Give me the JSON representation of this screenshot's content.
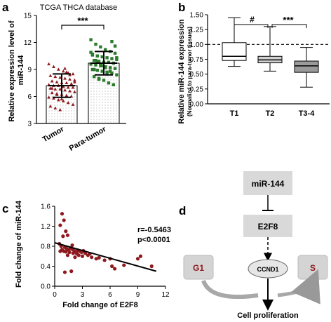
{
  "chart_data": [
    {
      "panel": "a",
      "type": "bar",
      "title": "TCGA THCA database",
      "ylabel": "Relative expression level of miR-144",
      "categories": [
        "Tumor",
        "Para-tumor"
      ],
      "values": [
        7.2,
        9.7
      ],
      "sd": [
        1.3,
        1.3
      ],
      "ylim": [
        3,
        15
      ],
      "yticks": [
        3,
        6,
        9,
        12,
        15
      ],
      "significance": "***",
      "points": {
        "Tumor": [
          9.6,
          9.3,
          9.0,
          8.8,
          8.6,
          8.5,
          8.3,
          8.2,
          8.1,
          8.0,
          7.9,
          7.8,
          7.7,
          7.6,
          7.5,
          7.5,
          7.4,
          7.3,
          7.2,
          7.2,
          7.1,
          7.0,
          7.0,
          6.9,
          6.8,
          6.8,
          6.7,
          6.6,
          6.5,
          6.4,
          6.3,
          6.2,
          6.1,
          6.0,
          5.9,
          5.8,
          5.6,
          5.5,
          5.3,
          5.1,
          4.9,
          4.7,
          4.5,
          9.1,
          8.4,
          7.6,
          6.9,
          6.2,
          5.7,
          8.7
        ],
        "Para-tumor": [
          12.3,
          11.8,
          11.5,
          11.2,
          11.0,
          10.8,
          10.6,
          10.5,
          10.4,
          10.3,
          10.2,
          10.1,
          10.0,
          9.9,
          9.8,
          9.8,
          9.7,
          9.6,
          9.5,
          9.4,
          9.3,
          9.2,
          9.1,
          9.0,
          8.9,
          8.8,
          8.7,
          8.6,
          8.4,
          8.2,
          8.0,
          7.8,
          7.5,
          7.3,
          10.9,
          10.0,
          9.6,
          9.2,
          8.8,
          11.6,
          10.7,
          9.9,
          9.4,
          8.5,
          12.1,
          10.3,
          9.0,
          7.9
        ]
      }
    },
    {
      "panel": "b",
      "type": "boxplot",
      "ylabel": "Relative miR-144 expression",
      "ylabel2": "(Normalizd to para-tumor tissues)",
      "categories": [
        "T1",
        "T2",
        "T3-4"
      ],
      "boxes": [
        {
          "min": 0.63,
          "q1": 0.73,
          "median": 0.8,
          "q3": 1.03,
          "max": 1.45
        },
        {
          "min": 0.55,
          "q1": 0.69,
          "median": 0.74,
          "q3": 0.8,
          "max": 1.3
        },
        {
          "min": 0.28,
          "q1": 0.53,
          "median": 0.64,
          "q3": 0.72,
          "max": 0.95
        }
      ],
      "reference_line": 1.0,
      "ylim": [
        0,
        1.5
      ],
      "yticks": [
        "0.00",
        "0.25",
        "0.50",
        "0.75",
        "1.00",
        "1.25",
        "1.50"
      ],
      "significance": [
        {
          "from": "T1",
          "to": "T2",
          "label": "#"
        },
        {
          "from": "T2",
          "to": "T3-4",
          "label": "***"
        }
      ]
    },
    {
      "panel": "c",
      "type": "scatter",
      "xlabel": "Fold change of E2F8",
      "ylabel": "Fold change of miR-144",
      "xlim": [
        0,
        12
      ],
      "ylim": [
        0,
        1.6
      ],
      "xticks": [
        0,
        3,
        6,
        9,
        12
      ],
      "yticks": [
        "0.0",
        "0.4",
        "0.8",
        "1.2",
        "1.6"
      ],
      "annotation": [
        "r=-0.5463",
        "p<0.0001"
      ],
      "fit": {
        "x0": 0,
        "y0": 0.87,
        "x1": 11,
        "y1": 0.3
      },
      "points": [
        [
          0.8,
          1.45
        ],
        [
          1.0,
          1.32
        ],
        [
          0.6,
          1.22
        ],
        [
          1.2,
          1.1
        ],
        [
          1.4,
          1.02
        ],
        [
          0.9,
          1.0
        ],
        [
          0.5,
          0.85
        ],
        [
          0.7,
          0.8
        ],
        [
          1.1,
          0.78
        ],
        [
          1.3,
          0.75
        ],
        [
          1.5,
          0.73
        ],
        [
          1.7,
          0.76
        ],
        [
          1.9,
          0.74
        ],
        [
          2.1,
          0.71
        ],
        [
          2.3,
          0.69
        ],
        [
          2.5,
          0.72
        ],
        [
          2.7,
          0.7
        ],
        [
          2.9,
          0.68
        ],
        [
          3.1,
          0.71
        ],
        [
          3.3,
          0.66
        ],
        [
          1.0,
          0.7
        ],
        [
          1.6,
          0.68
        ],
        [
          2.0,
          0.66
        ],
        [
          2.4,
          0.65
        ],
        [
          0.8,
          0.73
        ],
        [
          1.2,
          0.69
        ],
        [
          3.0,
          0.6
        ],
        [
          3.6,
          0.62
        ],
        [
          4.0,
          0.58
        ],
        [
          4.5,
          0.55
        ],
        [
          4.8,
          0.57
        ],
        [
          5.4,
          0.52
        ],
        [
          6.0,
          0.55
        ],
        [
          6.2,
          0.4
        ],
        [
          6.5,
          0.35
        ],
        [
          7.5,
          0.42
        ],
        [
          9.0,
          0.55
        ],
        [
          9.3,
          0.6
        ],
        [
          10.5,
          0.4
        ],
        [
          1.8,
          0.3
        ],
        [
          2.2,
          0.58
        ],
        [
          1.4,
          0.62
        ],
        [
          2.6,
          0.62
        ],
        [
          0.6,
          0.7
        ],
        [
          1.9,
          0.82
        ],
        [
          3.8,
          0.65
        ],
        [
          1.1,
          0.28
        ]
      ]
    },
    {
      "panel": "d",
      "type": "diagram",
      "nodes": {
        "mir": "miR-144",
        "e2f8": "E2F8",
        "ccnd1": "CCND1",
        "g1": "G1",
        "s": "S",
        "result": "Cell proliferation"
      }
    }
  ],
  "colors": {
    "red": "#8e1a1e",
    "green": "#2c7a2c",
    "diagram_box": "#d9d9d9",
    "box_gray": "#9a9a9a"
  },
  "panels": {
    "a": "a",
    "b": "b",
    "c": "c",
    "d": "d"
  }
}
